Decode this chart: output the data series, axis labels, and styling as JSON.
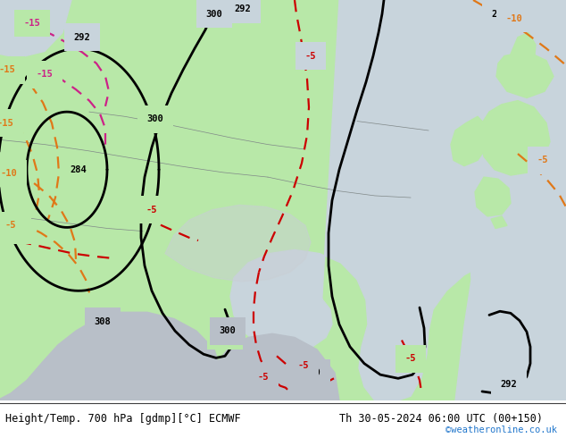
{
  "title_left": "Height/Temp. 700 hPa [gdmp][°C] ECMWF",
  "title_right": "Th 30-05-2024 06:00 UTC (00+150)",
  "credit": "©weatheronline.co.uk",
  "land_color": "#b8e8a8",
  "sea_color": "#c8d4dc",
  "gray_color": "#b8bfc8",
  "white_color": "#ffffff",
  "title_fontsize": 8.5,
  "credit_color": "#2277cc",
  "fig_width": 6.34,
  "fig_height": 4.9,
  "dpi": 100
}
